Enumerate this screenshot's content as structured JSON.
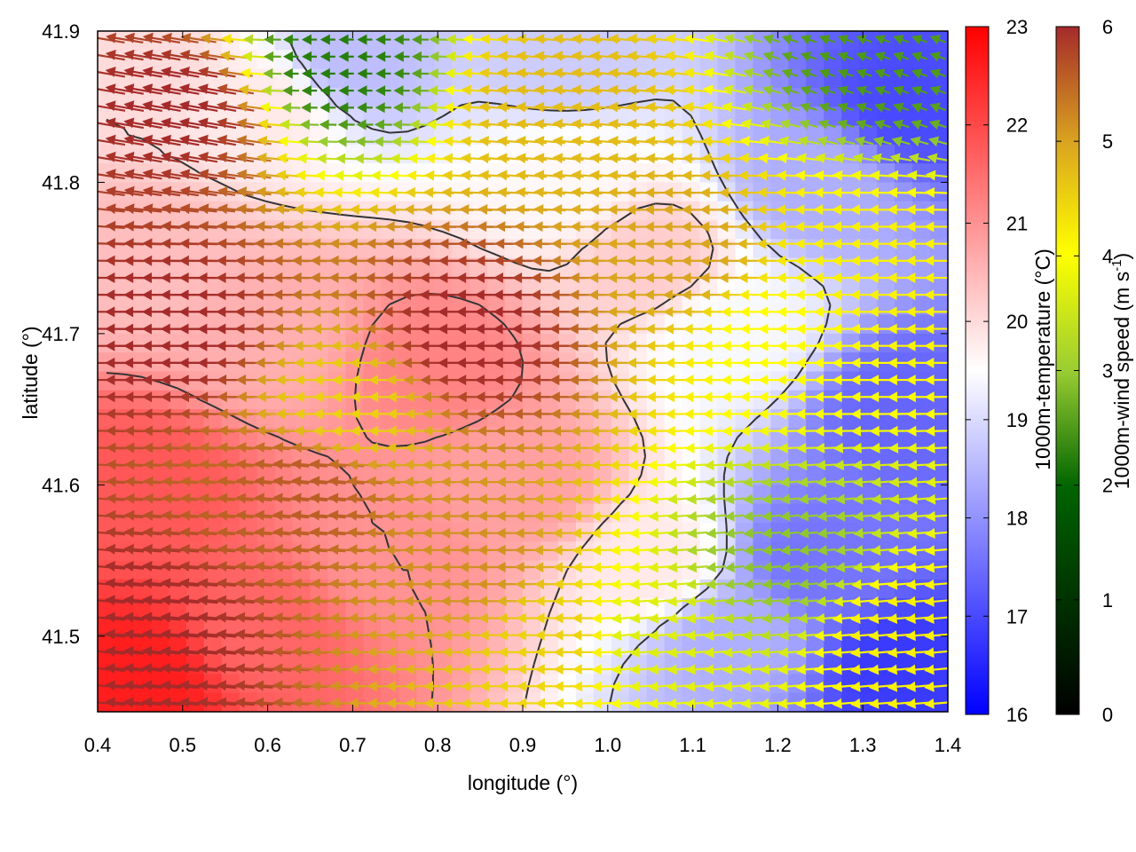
{
  "chart_data": {
    "type": "heatmap",
    "title": "",
    "xlabel": "longitude (°)",
    "ylabel": "latitude (°)",
    "xlim": [
      0.4,
      1.4
    ],
    "ylim": [
      41.45,
      41.9
    ],
    "x_ticks": [
      "0.4",
      "0.5",
      "0.6",
      "0.7",
      "0.8",
      "0.9",
      "1.0",
      "1.1",
      "1.2",
      "1.3",
      "1.4"
    ],
    "y_ticks": [
      "41.5",
      "41.6",
      "41.7",
      "41.8",
      "41.9"
    ],
    "temperature_colorbar": {
      "label": "1000m-temperature (°C)",
      "range": [
        16,
        23
      ],
      "ticks": [
        "16",
        "17",
        "18",
        "19",
        "20",
        "21",
        "22",
        "23"
      ],
      "colors": [
        "#0000ff",
        "#ffffff",
        "#ff0000"
      ]
    },
    "wind_colorbar": {
      "label_main": "1000m-wind speed (m s",
      "label_sup": "-1",
      "label_end": ")",
      "range": [
        0,
        6
      ],
      "ticks": [
        "0",
        "1",
        "2",
        "3",
        "4",
        "5",
        "6"
      ],
      "colors": [
        "#000000",
        "#006400",
        "#9acd32",
        "#ffff00",
        "#daa520",
        "#a52a2a"
      ]
    },
    "temperature_field_samples": [
      {
        "lon": 0.45,
        "lat": 41.47,
        "t": 22.6
      },
      {
        "lon": 0.45,
        "lat": 41.6,
        "t": 21.8
      },
      {
        "lon": 0.45,
        "lat": 41.75,
        "t": 20.4
      },
      {
        "lon": 0.45,
        "lat": 41.88,
        "t": 20.0
      },
      {
        "lon": 0.6,
        "lat": 41.5,
        "t": 21.6
      },
      {
        "lon": 0.6,
        "lat": 41.7,
        "t": 20.6
      },
      {
        "lon": 0.6,
        "lat": 41.85,
        "t": 19.8
      },
      {
        "lon": 0.75,
        "lat": 41.55,
        "t": 21.0
      },
      {
        "lon": 0.8,
        "lat": 41.68,
        "t": 21.2
      },
      {
        "lon": 0.7,
        "lat": 41.88,
        "t": 18.6
      },
      {
        "lon": 0.9,
        "lat": 41.6,
        "t": 20.8
      },
      {
        "lon": 0.95,
        "lat": 41.8,
        "t": 19.6
      },
      {
        "lon": 0.95,
        "lat": 41.88,
        "t": 18.8
      },
      {
        "lon": 1.05,
        "lat": 41.55,
        "t": 19.8
      },
      {
        "lon": 1.05,
        "lat": 41.75,
        "t": 20.2
      },
      {
        "lon": 1.15,
        "lat": 41.5,
        "t": 18.4
      },
      {
        "lon": 1.15,
        "lat": 41.7,
        "t": 19.4
      },
      {
        "lon": 1.25,
        "lat": 41.55,
        "t": 17.6
      },
      {
        "lon": 1.25,
        "lat": 41.8,
        "t": 18.4
      },
      {
        "lon": 1.35,
        "lat": 41.48,
        "t": 16.8
      },
      {
        "lon": 1.35,
        "lat": 41.65,
        "t": 17.4
      },
      {
        "lon": 1.35,
        "lat": 41.85,
        "t": 17.0
      }
    ],
    "wind_field_samples": [
      {
        "lon": 0.45,
        "lat": 41.5,
        "speed": 6.0,
        "dir_deg": 175
      },
      {
        "lon": 0.5,
        "lat": 41.7,
        "speed": 6.0,
        "dir_deg": 180
      },
      {
        "lon": 0.5,
        "lat": 41.85,
        "speed": 6.0,
        "dir_deg": 170
      },
      {
        "lon": 0.65,
        "lat": 41.6,
        "speed": 5.5,
        "dir_deg": 175
      },
      {
        "lon": 0.7,
        "lat": 41.65,
        "speed": 4.2,
        "dir_deg": 180
      },
      {
        "lon": 0.68,
        "lat": 41.88,
        "speed": 1.5,
        "dir_deg": 180
      },
      {
        "lon": 0.85,
        "lat": 41.7,
        "speed": 6.0,
        "dir_deg": 180
      },
      {
        "lon": 0.85,
        "lat": 41.55,
        "speed": 5.0,
        "dir_deg": 180
      },
      {
        "lon": 0.95,
        "lat": 41.5,
        "speed": 4.2,
        "dir_deg": 180
      },
      {
        "lon": 0.95,
        "lat": 41.85,
        "speed": 4.5,
        "dir_deg": 175
      },
      {
        "lon": 1.05,
        "lat": 41.5,
        "speed": 3.2,
        "dir_deg": 185
      },
      {
        "lon": 1.1,
        "lat": 41.75,
        "speed": 4.8,
        "dir_deg": 180
      },
      {
        "lon": 1.2,
        "lat": 41.55,
        "speed": 2.3,
        "dir_deg": 185
      },
      {
        "lon": 1.2,
        "lat": 41.7,
        "speed": 3.6,
        "dir_deg": 180
      },
      {
        "lon": 1.3,
        "lat": 41.75,
        "speed": 3.8,
        "dir_deg": 180
      },
      {
        "lon": 1.32,
        "lat": 41.88,
        "speed": 1.8,
        "dir_deg": 160
      },
      {
        "lon": 1.35,
        "lat": 41.5,
        "speed": 3.8,
        "dir_deg": 185
      }
    ],
    "grid": false,
    "contours": "dark grey isolines overlaid on the temperature field"
  }
}
